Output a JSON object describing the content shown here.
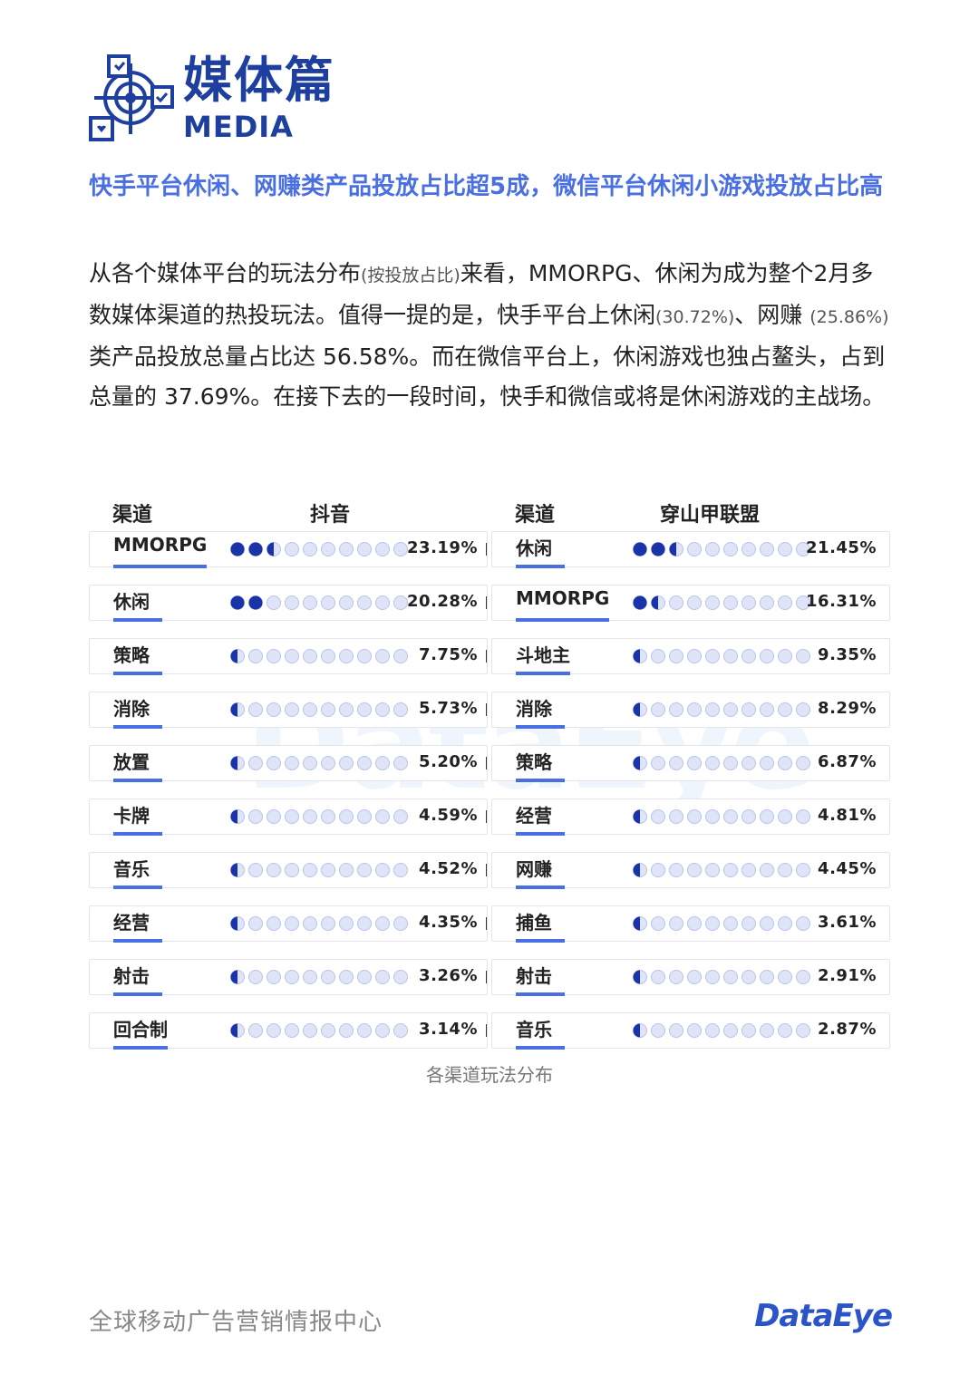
{
  "header": {
    "title_cn": "媒体篇",
    "title_en": "MEDIA",
    "icon": "media-target-icon"
  },
  "headline": "快手平台休闲、网赚类产品投放占比超5成，微信平台休闲小游戏投放占比高",
  "body": {
    "p1": "从各个媒体平台的玩法分布",
    "p1_note": "(按投放占比)",
    "p2": "来看，MMORPG、休闲为成为整个2月多数媒体渠道的热投玩法。值得一提的是，快手平台上休闲",
    "p2_note": "(30.72%)",
    "p3": "、网赚 ",
    "p3_note": "(25.86%)",
    "p4": " 类产品投放总量占比达 56.58%。而在微信平台上，休闲游戏也独占鳌头，占到总量的 37.69%。在接下去的一段时间，快手和微信或将是休闲游戏的主战场。"
  },
  "tables": [
    {
      "channel_header": "渠道",
      "platform": "抖音",
      "rows": [
        {
          "label": "MMORPG",
          "value": 23.19,
          "display": "23.19%"
        },
        {
          "label": "休闲",
          "value": 20.28,
          "display": "20.28%"
        },
        {
          "label": "策略",
          "value": 7.75,
          "display": "7.75%"
        },
        {
          "label": "消除",
          "value": 5.73,
          "display": "5.73%"
        },
        {
          "label": "放置",
          "value": 5.2,
          "display": "5.20%"
        },
        {
          "label": "卡牌",
          "value": 4.59,
          "display": "4.59%"
        },
        {
          "label": "音乐",
          "value": 4.52,
          "display": "4.52%"
        },
        {
          "label": "经营",
          "value": 4.35,
          "display": "4.35%"
        },
        {
          "label": "射击",
          "value": 3.26,
          "display": "3.26%"
        },
        {
          "label": "回合制",
          "value": 3.14,
          "display": "3.14%"
        }
      ]
    },
    {
      "channel_header": "渠道",
      "platform": "穿山甲联盟",
      "rows": [
        {
          "label": "休闲",
          "value": 21.45,
          "display": "21.45%"
        },
        {
          "label": "MMORPG",
          "value": 16.31,
          "display": "16.31%"
        },
        {
          "label": "斗地主",
          "value": 9.35,
          "display": "9.35%"
        },
        {
          "label": "消除",
          "value": 8.29,
          "display": "8.29%"
        },
        {
          "label": "策略",
          "value": 6.87,
          "display": "6.87%"
        },
        {
          "label": "经营",
          "value": 4.81,
          "display": "4.81%"
        },
        {
          "label": "网赚",
          "value": 4.45,
          "display": "4.45%"
        },
        {
          "label": "捕鱼",
          "value": 3.61,
          "display": "3.61%"
        },
        {
          "label": "射击",
          "value": 2.91,
          "display": "2.91%"
        },
        {
          "label": "音乐",
          "value": 2.87,
          "display": "2.87%"
        }
      ]
    }
  ],
  "caption": "各渠道玩法分布",
  "footer": {
    "left": "全球移动广告营销情报中心",
    "brand": "DataEye"
  },
  "colors": {
    "accent": "#1e3f9e",
    "dot_fill": "#1a33a8",
    "dot_empty": "#dfe5f7",
    "headline": "#4a6fe3"
  }
}
